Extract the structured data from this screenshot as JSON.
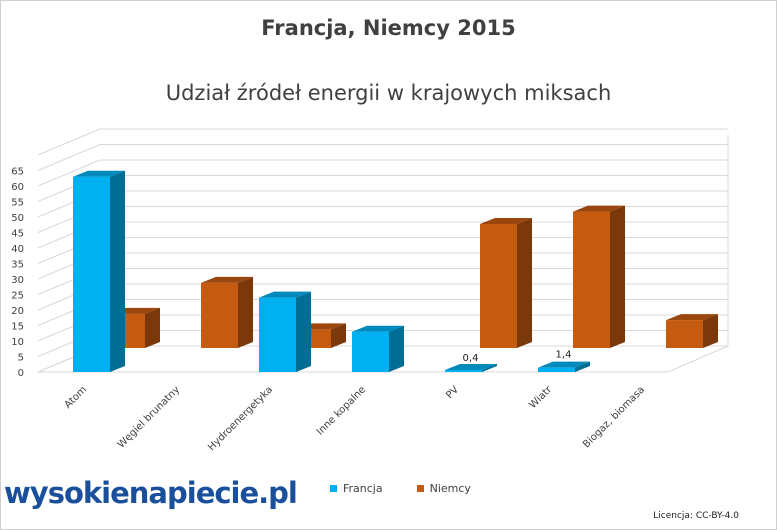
{
  "chart_data": {
    "type": "bar",
    "title": "Francja, Niemcy 2015",
    "subtitle": "Udział źródeł energii w krajowych miksach",
    "categories": [
      "Atom",
      "Węgiel brunatny",
      "Hydroenergetyka",
      "Inne kopalne",
      "PV",
      "Wiatr",
      "Biogaz, biomasa"
    ],
    "series": [
      {
        "name": "Francja",
        "color": "#00b0f0",
        "values": [
          63,
          0,
          24,
          13,
          0.4,
          1.4,
          0
        ]
      },
      {
        "name": "Niemcy",
        "color": "#c55a11",
        "values": [
          11,
          21,
          6,
          0,
          40,
          44,
          9
        ]
      }
    ],
    "data_labels": [
      {
        "series": "Francja",
        "category": "PV",
        "text": "0,4"
      },
      {
        "series": "Francja",
        "category": "Wiatr",
        "text": "1,4"
      }
    ],
    "yticks": [
      "0",
      "5",
      "10",
      "15",
      "20",
      "25",
      "30",
      "35",
      "40",
      "45",
      "50",
      "55",
      "60",
      "65"
    ],
    "ylim": [
      0,
      65
    ],
    "legend_position": "bottom"
  },
  "logo": {
    "text": "wysokienapiecie.pl"
  },
  "license": "Licencja: CC-BY-4.0"
}
